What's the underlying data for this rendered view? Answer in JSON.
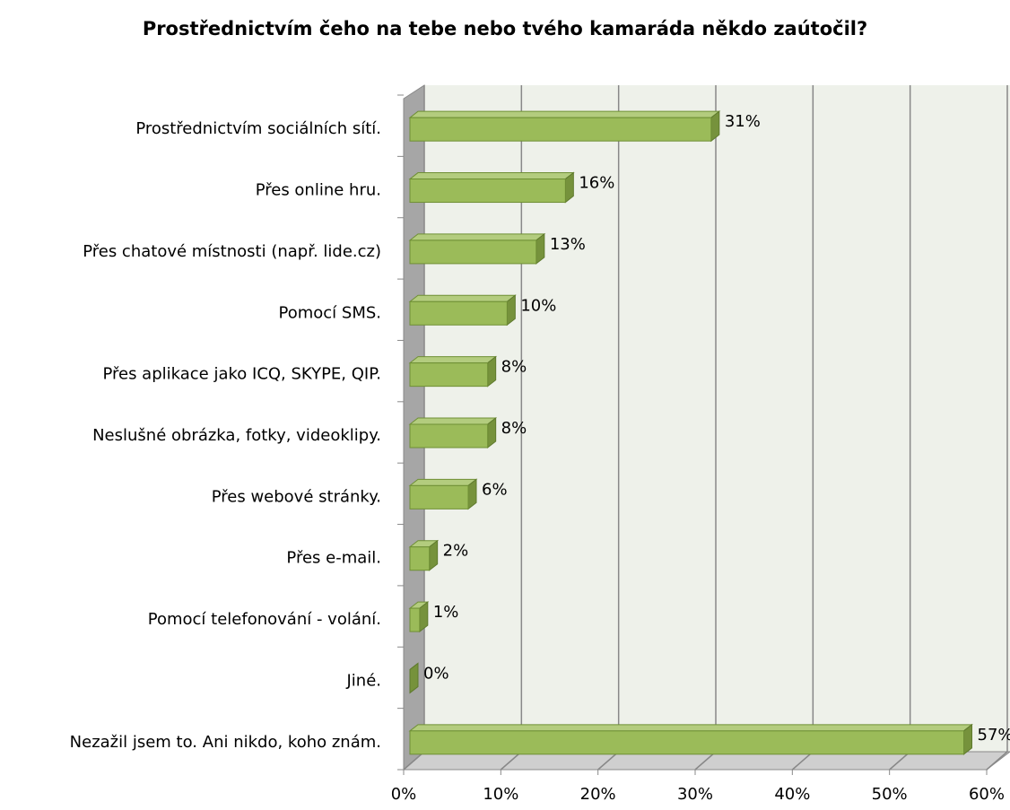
{
  "chart_data": {
    "type": "bar",
    "orientation": "horizontal",
    "title": "Prostřednictvím čeho na tebe nebo tvého kamaráda někdo zaútočil?",
    "categories": [
      "Prostřednictvím sociálních sítí.",
      "Přes online hru.",
      "Přes chatové místnosti (např. lide.cz)",
      "Pomocí SMS.",
      "Přes aplikace jako ICQ, SKYPE, QIP.",
      "Neslušné obrázka, fotky, videoklipy.",
      "Přes webové stránky.",
      "Přes e-mail.",
      "Pomocí telefonování - volání.",
      "Jiné.",
      "Nezažil jsem to. Ani nikdo, koho znám."
    ],
    "values": [
      31,
      16,
      13,
      10,
      8,
      8,
      6,
      2,
      1,
      0,
      57
    ],
    "value_labels": [
      "31%",
      "16%",
      "13%",
      "10%",
      "8%",
      "8%",
      "6%",
      "2%",
      "1%",
      "0%",
      "57%"
    ],
    "color": "#9bbb59",
    "xlim": [
      0,
      60
    ],
    "xticks": [
      {
        "value": 0,
        "label": "0%"
      },
      {
        "value": 10,
        "label": "10%"
      },
      {
        "value": 20,
        "label": "20%"
      },
      {
        "value": 30,
        "label": "30%"
      },
      {
        "value": 40,
        "label": "40%"
      },
      {
        "value": 50,
        "label": "50%"
      },
      {
        "value": 60,
        "label": "60%"
      }
    ],
    "grid": true
  }
}
